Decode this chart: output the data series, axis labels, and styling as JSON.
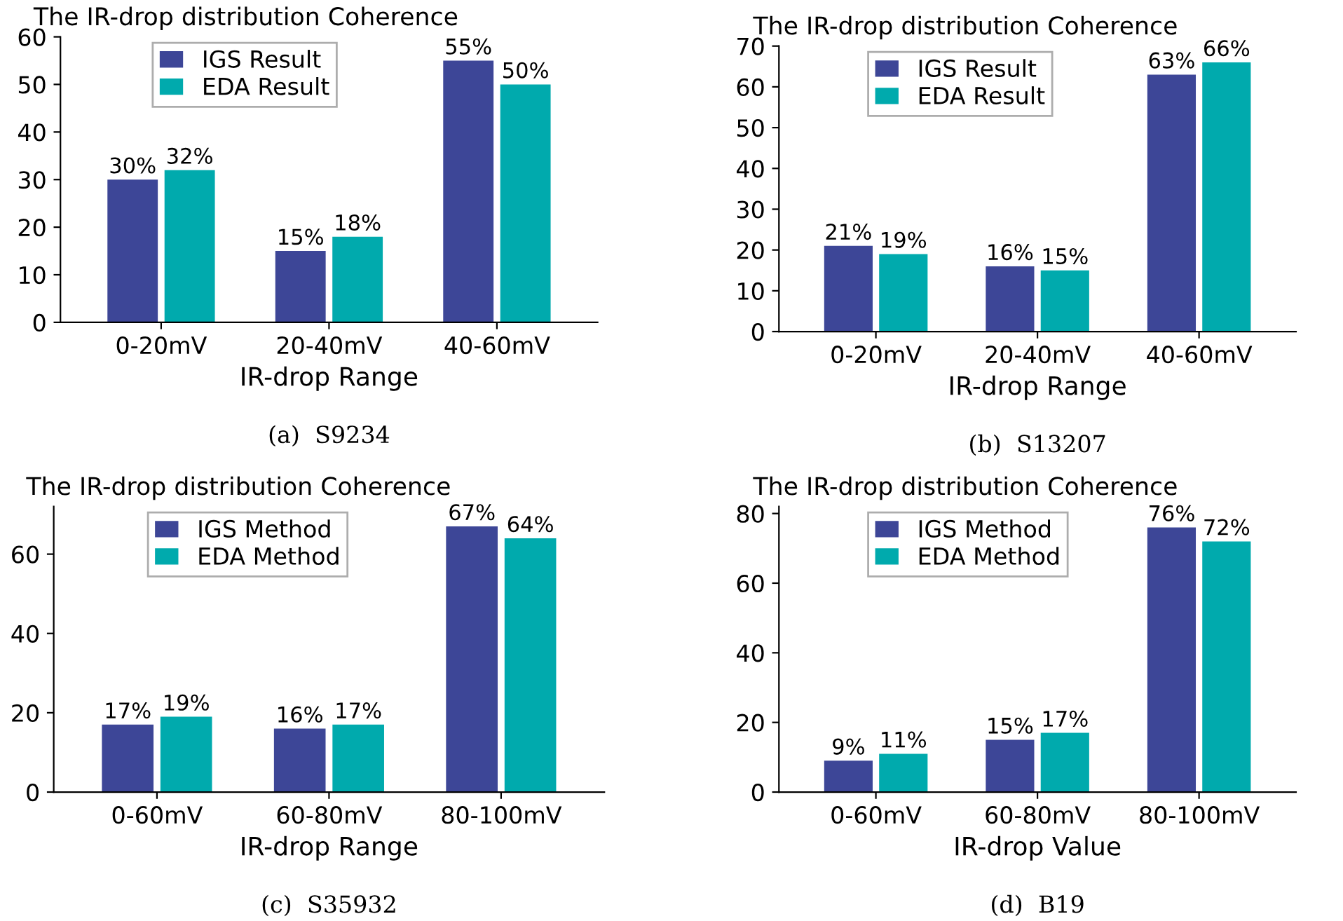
{
  "chart_data": [
    {
      "type": "bar",
      "title": "The IR-drop distribution Coherence",
      "xlabel": "IR-drop Range",
      "categories": [
        "0-20mV",
        "20-40mV",
        "40-60mV"
      ],
      "ylim": [
        0,
        60
      ],
      "yticks": [
        0,
        10,
        20,
        30,
        40,
        50,
        60
      ],
      "legend": "top left",
      "grid": false,
      "annotations": [
        "(a)  S9234"
      ],
      "series": [
        {
          "name": "IGS Result",
          "color": "#3d4697",
          "values": [
            30,
            15,
            55
          ],
          "value_labels": [
            "30%",
            "15%",
            "55%"
          ]
        },
        {
          "name": "EDA Result",
          "color": "#00aaad",
          "values": [
            32,
            18,
            50
          ],
          "value_labels": [
            "32%",
            "18%",
            "50%"
          ]
        }
      ]
    },
    {
      "type": "bar",
      "title": "The IR-drop distribution Coherence",
      "xlabel": "IR-drop Range",
      "categories": [
        "0-20mV",
        "20-40mV",
        "40-60mV"
      ],
      "ylim": [
        0,
        70
      ],
      "yticks": [
        0,
        10,
        20,
        30,
        40,
        50,
        60,
        70
      ],
      "legend": "top left",
      "grid": false,
      "annotations": [
        "(b)  S13207"
      ],
      "series": [
        {
          "name": "IGS Result",
          "color": "#3d4697",
          "values": [
            21,
            16,
            63
          ],
          "value_labels": [
            "21%",
            "16%",
            "63%"
          ]
        },
        {
          "name": "EDA Result",
          "color": "#00aaad",
          "values": [
            19,
            15,
            66
          ],
          "value_labels": [
            "19%",
            "15%",
            "66%"
          ]
        }
      ]
    },
    {
      "type": "bar",
      "title": "The IR-drop distribution Coherence",
      "xlabel": "IR-drop Range",
      "categories": [
        "0-60mV",
        "60-80mV",
        "80-100mV"
      ],
      "ylim": [
        0,
        72
      ],
      "yticks": [
        0,
        20,
        40,
        60
      ],
      "legend": "top left",
      "grid": false,
      "annotations": [
        "(c)  S35932"
      ],
      "series": [
        {
          "name": "IGS Method",
          "color": "#3d4697",
          "values": [
            17,
            16,
            67
          ],
          "value_labels": [
            "17%",
            "16%",
            "67%"
          ]
        },
        {
          "name": "EDA Method",
          "color": "#00aaad",
          "values": [
            19,
            17,
            64
          ],
          "value_labels": [
            "19%",
            "17%",
            "64%"
          ]
        }
      ]
    },
    {
      "type": "bar",
      "title": "The IR-drop distribution Coherence",
      "xlabel": "IR-drop Value",
      "categories": [
        "0-60mV",
        "60-80mV",
        "80-100mV"
      ],
      "ylim": [
        0,
        82
      ],
      "yticks": [
        0,
        20,
        40,
        60,
        80
      ],
      "legend": "top left",
      "grid": false,
      "annotations": [
        "(d)  B19"
      ],
      "series": [
        {
          "name": "IGS Method",
          "color": "#3d4697",
          "values": [
            9,
            15,
            76
          ],
          "value_labels": [
            "9%",
            "15%",
            "76%"
          ]
        },
        {
          "name": "EDA Method",
          "color": "#00aaad",
          "values": [
            11,
            17,
            72
          ],
          "value_labels": [
            "11%",
            "17%",
            "72%"
          ]
        }
      ]
    }
  ]
}
